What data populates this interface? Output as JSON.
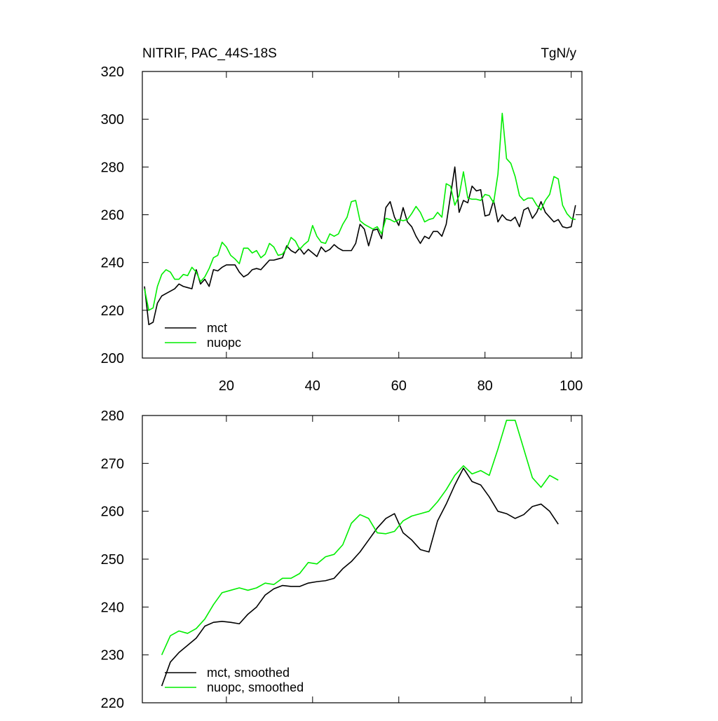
{
  "chart_data": [
    {
      "type": "line",
      "title": "NITRIF, PAC_44S-18S",
      "units": "TgN/y",
      "x": [
        1,
        2,
        3,
        4,
        5,
        6,
        7,
        8,
        9,
        10,
        11,
        12,
        13,
        14,
        15,
        16,
        17,
        18,
        19,
        20,
        21,
        22,
        23,
        24,
        25,
        26,
        27,
        28,
        29,
        30,
        31,
        32,
        33,
        34,
        35,
        36,
        37,
        38,
        39,
        40,
        41,
        42,
        43,
        44,
        45,
        46,
        47,
        48,
        49,
        50,
        51,
        52,
        53,
        54,
        55,
        56,
        57,
        58,
        59,
        60,
        61,
        62,
        63,
        64,
        65,
        66,
        67,
        68,
        69,
        70,
        71,
        72,
        73,
        74,
        75,
        76,
        77,
        78,
        79,
        80,
        81,
        82,
        83,
        84,
        85,
        86,
        87,
        88,
        89,
        90,
        91,
        92,
        93,
        94,
        95,
        96,
        97,
        98,
        99,
        100,
        101
      ],
      "series": [
        {
          "name": "mct",
          "color": "#000000",
          "values": [
            230,
            214,
            215,
            223,
            226,
            227,
            228,
            229,
            231,
            230,
            229.5,
            229,
            237,
            231,
            233,
            230,
            237,
            236.5,
            238,
            239,
            239,
            239,
            236,
            234,
            235,
            237,
            237.5,
            237,
            239,
            241,
            241,
            241.5,
            242,
            247,
            245,
            244,
            246,
            243.5,
            245.5,
            244,
            242.5,
            246.5,
            244.5,
            245.5,
            247.5,
            246,
            245,
            245,
            245,
            248,
            256,
            254,
            247,
            253.5,
            254,
            250,
            263,
            265.5,
            259,
            255.5,
            263,
            257,
            255,
            251,
            248,
            251,
            250,
            253,
            253,
            251,
            256,
            268,
            280,
            261,
            266,
            265,
            272,
            270,
            270.5,
            259.5,
            260,
            266,
            257,
            260,
            258,
            257.5,
            259,
            255,
            262,
            263,
            258.5,
            261,
            265.5,
            261,
            259,
            257,
            258,
            255,
            254.5,
            255,
            264
          ]
        },
        {
          "name": "nuopc",
          "color": "#00ee00",
          "values": [
            229,
            220,
            221,
            230,
            235,
            237,
            236,
            233,
            233,
            235,
            234.5,
            238,
            236,
            232,
            234,
            237.5,
            242,
            243,
            248.5,
            246.5,
            243,
            241.5,
            239.5,
            246,
            246,
            244,
            245,
            242,
            243.5,
            248,
            246.5,
            243,
            243.5,
            246,
            250.5,
            249,
            245.5,
            247.5,
            249,
            255.5,
            251,
            248.5,
            248,
            252,
            251,
            252,
            256,
            259,
            265.5,
            266,
            257.5,
            256,
            255,
            254,
            255,
            252,
            258.5,
            258,
            257,
            258,
            257.5,
            258,
            260.5,
            263.5,
            261,
            257,
            258,
            258.5,
            261,
            259,
            273,
            272,
            264,
            268,
            278,
            267,
            266.5,
            266.5,
            266,
            268.5,
            268,
            265,
            277,
            302.5,
            283.5,
            281.5,
            276,
            268,
            266,
            267,
            267,
            264,
            262,
            266,
            268.5,
            276,
            275,
            264,
            260.5,
            258.5,
            258
          ]
        }
      ],
      "xlim": [
        0.5,
        102.5
      ],
      "xticks": [
        20,
        40,
        60,
        80,
        100
      ],
      "xtick_labels": true,
      "ylim": [
        200,
        320
      ],
      "yticks": [
        200,
        220,
        240,
        260,
        280,
        300,
        320
      ],
      "legend": "lower left"
    },
    {
      "type": "line",
      "x": [
        5,
        7,
        9,
        11,
        13,
        15,
        17,
        19,
        21,
        23,
        25,
        27,
        29,
        31,
        33,
        35,
        37,
        39,
        41,
        43,
        45,
        47,
        49,
        51,
        53,
        55,
        57,
        59,
        61,
        63,
        65,
        67,
        69,
        71,
        73,
        75,
        77,
        79,
        81,
        83,
        85,
        87,
        89,
        91,
        93,
        95,
        97
      ],
      "series": [
        {
          "name": "mct, smoothed",
          "color": "#000000",
          "values": [
            223.5,
            228.5,
            230.5,
            232,
            233.5,
            236,
            236.8,
            237,
            236.8,
            236.5,
            238.5,
            240,
            242.5,
            243.8,
            244.5,
            244.3,
            244.3,
            245,
            245.3,
            245.5,
            246,
            248,
            249.5,
            251.5,
            254,
            256.5,
            258.5,
            259.5,
            255.5,
            254,
            252,
            251.5,
            258,
            261.5,
            265.5,
            269,
            266.2,
            265.5,
            263,
            260,
            259.5,
            258.5,
            259.3,
            261,
            261.5,
            260,
            257.3
          ]
        },
        {
          "name": "nuopc, smoothed",
          "color": "#00ee00",
          "values": [
            230,
            234,
            235,
            234.5,
            235.5,
            237.5,
            240.5,
            243,
            243.5,
            244,
            243.5,
            244,
            245,
            244.7,
            246,
            246,
            247,
            249.3,
            249,
            250.5,
            251,
            253,
            257.5,
            259.3,
            258.5,
            255.5,
            255.3,
            255.8,
            258,
            259,
            259.5,
            260,
            262,
            264.5,
            267.5,
            269.5,
            267.8,
            268.5,
            267.5,
            273,
            279,
            279,
            273,
            267,
            265,
            267.5,
            266.5
          ]
        }
      ],
      "xlim": [
        0.5,
        102.5
      ],
      "xticks": [
        20,
        40,
        60,
        80,
        100
      ],
      "xtick_labels": false,
      "ylim": [
        220,
        280
      ],
      "yticks": [
        220,
        230,
        240,
        250,
        260,
        270,
        280
      ],
      "legend": "lower left"
    }
  ]
}
